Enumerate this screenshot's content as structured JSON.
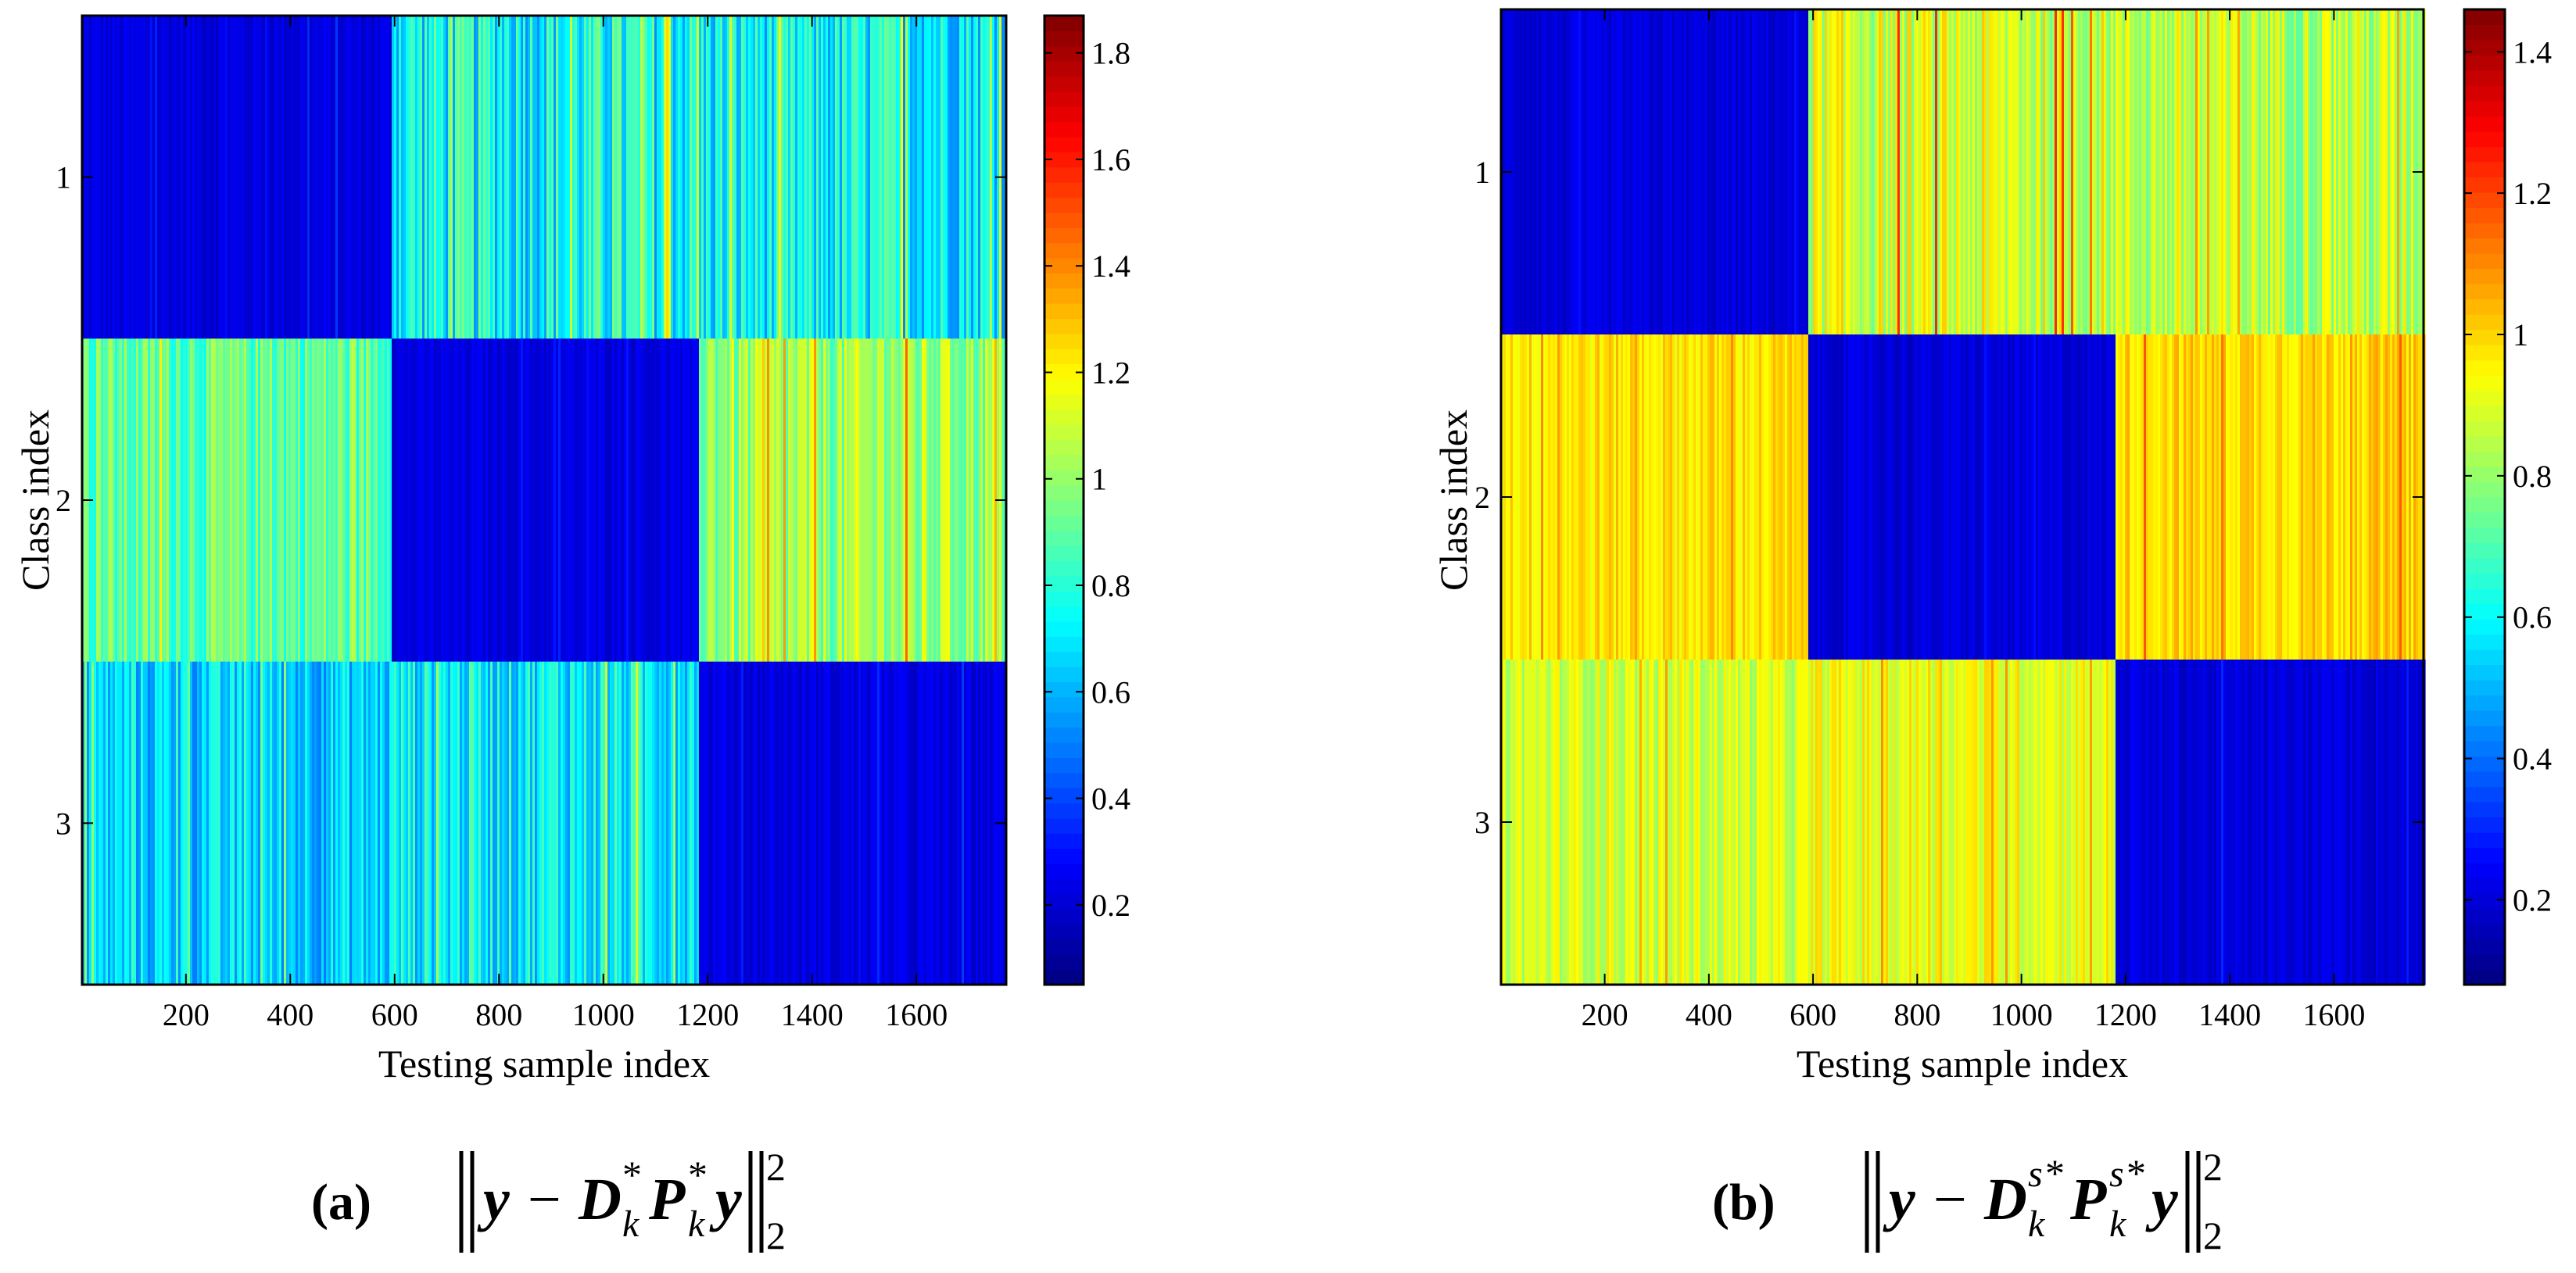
{
  "chart_data": [
    {
      "type": "heatmap",
      "panel_label": "(a)",
      "caption_formula": "||y − D_k* P_k* y||_2^2",
      "xlabel": "Testing sample index",
      "ylabel": "Class index",
      "x_range": [
        1,
        1772
      ],
      "x_ticks": [
        200,
        400,
        600,
        800,
        1000,
        1200,
        1400,
        1600
      ],
      "x_tick_labels": [
        "200",
        "400",
        "600",
        "800",
        "1000",
        "1200",
        "1400",
        "1600"
      ],
      "y_categories": [
        "1",
        "2",
        "3"
      ],
      "class_boundaries": [
        590,
        1180
      ],
      "colormap": "jet",
      "colorbar_range": [
        0.05,
        1.87
      ],
      "colorbar_ticks": [
        0.2,
        0.4,
        0.6,
        0.8,
        1,
        1.2,
        1.4,
        1.6,
        1.8
      ],
      "colorbar_tick_labels": [
        "0.2",
        "0.4",
        "0.6",
        "0.8",
        "1",
        "1.2",
        "1.4",
        "1.6",
        "1.8"
      ],
      "block_mean_values": [
        [
          0.22,
          0.75,
          0.72
        ],
        [
          0.9,
          0.22,
          1.0
        ],
        [
          0.65,
          0.72,
          0.22
        ]
      ],
      "block_spread": [
        [
          0.06,
          0.22,
          0.2
        ],
        [
          0.16,
          0.05,
          0.18
        ],
        [
          0.16,
          0.18,
          0.06
        ]
      ]
    },
    {
      "type": "heatmap",
      "panel_label": "(b)",
      "caption_formula": "||y − D_k^{s*} P_k^{s*} y||_2^2",
      "xlabel": "Testing sample index",
      "ylabel": "Class index",
      "x_range": [
        1,
        1772
      ],
      "x_ticks": [
        200,
        400,
        600,
        800,
        1000,
        1200,
        1400,
        1600
      ],
      "x_tick_labels": [
        "200",
        "400",
        "600",
        "800",
        "1000",
        "1200",
        "1400",
        "1600"
      ],
      "y_categories": [
        "1",
        "2",
        "3"
      ],
      "class_boundaries": [
        590,
        1180
      ],
      "colormap": "jet",
      "colorbar_range": [
        0.08,
        1.46
      ],
      "colorbar_ticks": [
        0.2,
        0.4,
        0.6,
        0.8,
        1,
        1.2,
        1.4
      ],
      "colorbar_tick_labels": [
        "0.2",
        "0.4",
        "0.6",
        "0.8",
        "1",
        "1.2",
        "1.4"
      ],
      "block_mean_values": [
        [
          0.2,
          0.88,
          0.85
        ],
        [
          0.98,
          0.2,
          1.0
        ],
        [
          0.88,
          0.92,
          0.2
        ]
      ],
      "block_spread": [
        [
          0.04,
          0.14,
          0.13
        ],
        [
          0.07,
          0.04,
          0.07
        ],
        [
          0.09,
          0.09,
          0.04
        ]
      ]
    }
  ]
}
